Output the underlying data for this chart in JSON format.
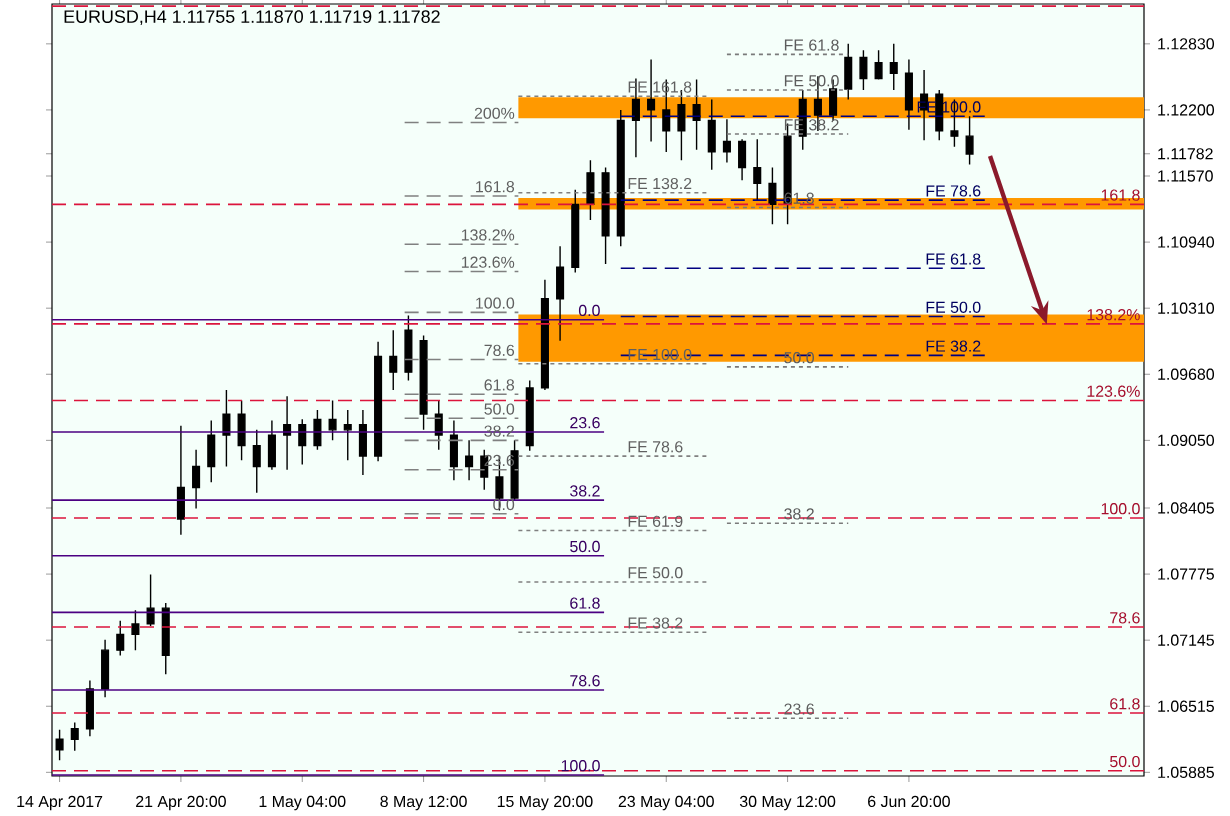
{
  "chart_data": {
    "type": "candlestick",
    "title": "EURUSD,H4 1.11755 1.11870 1.11719 1.11782",
    "color": "#000000",
    "categories": [
      "14 Apr 2017",
      null,
      null,
      null,
      null,
      null,
      null,
      null,
      "21 Apr 20:00",
      null,
      null,
      null,
      null,
      null,
      null,
      null,
      "1 May 04:00",
      null,
      null,
      null,
      null,
      null,
      null,
      null,
      "8 May 12:00",
      null,
      null,
      null,
      null,
      null,
      null,
      null,
      "15 May 20:00",
      null,
      null,
      null,
      null,
      null,
      null,
      null,
      "23 May 04:00",
      null,
      null,
      null,
      null,
      null,
      null,
      null,
      "30 May 12:00",
      null,
      null,
      null,
      null,
      null,
      null,
      null,
      "6 Jun 20:00",
      null,
      null,
      null,
      null,
      null,
      null,
      null,
      null,
      null,
      null,
      null,
      null,
      null,
      null,
      null
    ],
    "ohlc": [
      [
        1.061,
        1.0629,
        1.06,
        1.062
      ],
      [
        1.062,
        1.0636,
        1.0609,
        1.063
      ],
      [
        1.063,
        1.0676,
        1.0623,
        1.0668
      ],
      [
        1.0668,
        1.0715,
        1.066,
        1.0705
      ],
      [
        1.0705,
        1.0733,
        1.07,
        1.072
      ],
      [
        1.072,
        1.0743,
        1.0705,
        1.073
      ],
      [
        1.073,
        1.0777,
        1.0728,
        1.0745
      ],
      [
        1.0745,
        1.075,
        1.0682,
        1.07
      ],
      [
        1.083,
        1.0919,
        1.0815,
        1.086
      ],
      [
        1.086,
        1.0896,
        1.084,
        1.088
      ],
      [
        1.088,
        1.0924,
        1.0865,
        1.091
      ],
      [
        1.091,
        1.0953,
        1.088,
        1.093
      ],
      [
        1.093,
        1.0943,
        1.0886,
        1.09
      ],
      [
        1.09,
        1.0915,
        1.0855,
        1.088
      ],
      [
        1.088,
        1.0924,
        1.0877,
        1.091
      ],
      [
        1.091,
        1.0947,
        1.0877,
        1.092
      ],
      [
        1.092,
        1.0925,
        1.0882,
        1.09
      ],
      [
        1.09,
        1.0934,
        1.0896,
        1.0925
      ],
      [
        1.0925,
        1.0943,
        1.0905,
        1.0915
      ],
      [
        1.0915,
        1.0934,
        1.0886,
        1.092
      ],
      [
        1.092,
        1.0934,
        1.0872,
        1.089
      ],
      [
        1.089,
        1.0999,
        1.0885,
        1.0985
      ],
      [
        1.0985,
        1.101,
        1.0953,
        1.097
      ],
      [
        1.097,
        1.1024,
        1.0962,
        1.101
      ],
      [
        1.1,
        1.1005,
        1.0915,
        1.093
      ],
      [
        1.093,
        1.0943,
        1.0896,
        1.091
      ],
      [
        1.091,
        1.0924,
        1.0867,
        1.088
      ],
      [
        1.088,
        1.0905,
        1.0867,
        1.089
      ],
      [
        1.089,
        1.0896,
        1.0858,
        1.087
      ],
      [
        1.087,
        1.089,
        1.0838,
        1.085
      ],
      [
        1.085,
        1.0905,
        1.0848,
        1.0895
      ],
      [
        1.09,
        1.0962,
        1.0895,
        1.0955
      ],
      [
        1.0955,
        1.1058,
        1.0953,
        1.104
      ],
      [
        1.104,
        1.109,
        1.1,
        1.107
      ],
      [
        1.107,
        1.1144,
        1.1065,
        1.113
      ],
      [
        1.113,
        1.1172,
        1.1115,
        1.116
      ],
      [
        1.116,
        1.1165,
        1.1073,
        1.11
      ],
      [
        1.11,
        1.122,
        1.109,
        1.121
      ],
      [
        1.121,
        1.125,
        1.1175,
        1.123
      ],
      [
        1.123,
        1.1268,
        1.119,
        1.122
      ],
      [
        1.122,
        1.1249,
        1.118,
        1.12
      ],
      [
        1.12,
        1.1239,
        1.1172,
        1.1225
      ],
      [
        1.1225,
        1.1249,
        1.1182,
        1.121
      ],
      [
        1.121,
        1.123,
        1.1163,
        1.118
      ],
      [
        1.118,
        1.1211,
        1.117,
        1.119
      ],
      [
        1.119,
        1.1192,
        1.1153,
        1.1165
      ],
      [
        1.1165,
        1.1192,
        1.1134,
        1.115
      ],
      [
        1.115,
        1.1165,
        1.1111,
        1.113
      ],
      [
        1.113,
        1.1207,
        1.1111,
        1.1195
      ],
      [
        1.1195,
        1.1239,
        1.1182,
        1.123
      ],
      [
        1.123,
        1.1252,
        1.12,
        1.1215
      ],
      [
        1.1215,
        1.1249,
        1.121,
        1.124
      ],
      [
        1.124,
        1.1283,
        1.123,
        1.127
      ],
      [
        1.127,
        1.1277,
        1.1239,
        1.125
      ],
      [
        1.125,
        1.1277,
        1.1249,
        1.1265
      ],
      [
        1.1265,
        1.1283,
        1.1239,
        1.1255
      ],
      [
        1.1255,
        1.1268,
        1.1201,
        1.122
      ],
      [
        1.122,
        1.1258,
        1.1191,
        1.1235
      ],
      [
        1.1235,
        1.1239,
        1.1191,
        1.12
      ],
      [
        1.12,
        1.123,
        1.1185,
        1.1195
      ],
      [
        1.1195,
        1.1214,
        1.1168,
        1.1178
      ],
      null,
      null,
      null,
      null,
      null,
      null,
      null,
      null,
      null,
      null,
      null
    ],
    "ylim": [
      1.0585,
      1.1321
    ],
    "yticks": [
      {
        "value": 1.05885,
        "label": "1.05885"
      },
      {
        "value": 1.06515,
        "label": "1.06515"
      },
      {
        "value": 1.07145,
        "label": "1.07145"
      },
      {
        "value": 1.07775,
        "label": "1.07775"
      },
      {
        "value": 1.08405,
        "label": "1.08405"
      },
      {
        "value": 1.0905,
        "label": "1.09050"
      },
      {
        "value": 1.0968,
        "label": "1.09680"
      },
      {
        "value": 1.1031,
        "label": "1.10310"
      },
      {
        "value": 1.1094,
        "label": "1.10940"
      },
      {
        "value": 1.1157,
        "label": "1.11570"
      },
      1.11782,
      {
        "value": 1.122,
        "label": "1.12200"
      },
      {
        "value": 1.1283,
        "label": "1.12830"
      }
    ],
    "bands": [
      {
        "axis": "y",
        "from": 1.1212,
        "to": 1.1232,
        "color": "#ff9900"
      },
      {
        "axis": "y",
        "from": 1.1125,
        "to": 1.1136,
        "color": "#ff9900"
      },
      {
        "axis": "y",
        "from": 1.098,
        "to": 1.1025,
        "color": "#ff9900"
      }
    ],
    "ref_lines": [
      {
        "axis": "y",
        "value": 1.102,
        "color": "#4b0082",
        "line_style": "solid"
      },
      {
        "axis": "y",
        "value": 1.0913,
        "color": "#4b0082",
        "line_style": "solid"
      },
      {
        "axis": "y",
        "value": 1.0848,
        "color": "#4b0082",
        "line_style": "solid"
      },
      {
        "axis": "y",
        "value": 1.0795,
        "color": "#4b0082",
        "line_style": "solid"
      },
      {
        "axis": "y",
        "value": 1.0741,
        "color": "#4b0082",
        "line_style": "solid"
      },
      {
        "axis": "y",
        "value": 1.0667,
        "color": "#4b0082",
        "line_style": "solid"
      },
      {
        "axis": "y",
        "value": 1.0586,
        "color": "#4b0082",
        "line_style": "solid"
      },
      {
        "axis": "y",
        "value": 1.1319,
        "color": "#dc143c",
        "line_style": "dashed"
      },
      {
        "axis": "y",
        "value": 1.113,
        "color": "#dc143c",
        "line_style": "dashed"
      },
      {
        "axis": "y",
        "value": 1.1016,
        "color": "#dc143c",
        "line_style": "dashed"
      },
      {
        "axis": "y",
        "value": 1.0943,
        "color": "#dc143c",
        "line_style": "dashed"
      },
      {
        "axis": "y",
        "value": 1.0831,
        "color": "#dc143c",
        "line_style": "dashed"
      },
      {
        "axis": "y",
        "value": 1.0727,
        "color": "#dc143c",
        "line_style": "dashed"
      },
      {
        "axis": "y",
        "value": 1.0645,
        "color": "#dc143c",
        "line_style": "dashed"
      },
      {
        "axis": "y",
        "value": 1.059,
        "color": "#dc143c",
        "line_style": "dashed"
      },
      {
        "axis": "y",
        "value": 1.1208,
        "color": "#808080",
        "line_style": "dashed"
      },
      {
        "axis": "y",
        "value": 1.1138,
        "color": "#808080",
        "line_style": "dashed"
      },
      {
        "axis": "y",
        "value": 1.1092,
        "color": "#808080",
        "line_style": "dashed"
      },
      {
        "axis": "y",
        "value": 1.1066,
        "color": "#808080",
        "line_style": "dashed"
      },
      {
        "axis": "y",
        "value": 1.1027,
        "color": "#808080",
        "line_style": "dashed"
      },
      {
        "axis": "y",
        "value": 1.0982,
        "color": "#808080",
        "line_style": "dashed"
      },
      {
        "axis": "y",
        "value": 1.0949,
        "color": "#808080",
        "line_style": "dashed"
      },
      {
        "axis": "y",
        "value": 1.0926,
        "color": "#808080",
        "line_style": "dashed"
      },
      {
        "axis": "y",
        "value": 1.0905,
        "color": "#808080",
        "line_style": "dashed"
      },
      {
        "axis": "y",
        "value": 1.0877,
        "color": "#808080",
        "line_style": "dashed"
      },
      {
        "axis": "y",
        "value": 1.0835,
        "color": "#808080",
        "line_style": "dashed"
      },
      {
        "axis": "y",
        "value": 1.1233,
        "color": "#808080",
        "line_style": "dotted"
      },
      {
        "axis": "y",
        "value": 1.1141,
        "color": "#808080",
        "line_style": "dotted"
      },
      {
        "axis": "y",
        "value": 1.0978,
        "color": "#808080",
        "line_style": "dotted"
      },
      {
        "axis": "y",
        "value": 1.089,
        "color": "#808080",
        "line_style": "dotted"
      },
      {
        "axis": "y",
        "value": 1.0819,
        "color": "#808080",
        "line_style": "dotted"
      },
      {
        "axis": "y",
        "value": 1.077,
        "color": "#808080",
        "line_style": "dotted"
      },
      {
        "axis": "y",
        "value": 1.0722,
        "color": "#808080",
        "line_style": "dotted"
      },
      {
        "axis": "y",
        "value": 1.1273,
        "color": "#7a7a7a",
        "line_style": "dotted"
      },
      {
        "axis": "y",
        "value": 1.1239,
        "color": "#7a7a7a",
        "line_style": "dotted"
      },
      {
        "axis": "y",
        "value": 1.1197,
        "color": "#7a7a7a",
        "line_style": "dotted"
      },
      {
        "axis": "y",
        "value": 1.1127,
        "color": "#7a7a7a",
        "line_style": "dotted"
      },
      {
        "axis": "y",
        "value": 1.0975,
        "color": "#7a7a7a",
        "line_style": "dotted"
      },
      {
        "axis": "y",
        "value": 1.0826,
        "color": "#7a7a7a",
        "line_style": "dotted"
      },
      {
        "axis": "y",
        "value": 1.064,
        "color": "#7a7a7a",
        "line_style": "dotted"
      },
      {
        "axis": "y",
        "value": 1.1214,
        "color": "#000080",
        "line_style": "dashed"
      },
      {
        "axis": "y",
        "value": 1.1134,
        "color": "#000080",
        "line_style": "dashed"
      },
      {
        "axis": "y",
        "value": 1.1069,
        "color": "#000080",
        "line_style": "dashed"
      },
      {
        "axis": "y",
        "value": 1.1023,
        "color": "#000080",
        "line_style": "dashed"
      },
      {
        "axis": "y",
        "value": 1.0986,
        "color": "#000080",
        "line_style": "dashed"
      }
    ],
    "annotations": [
      {
        "text": "0.0",
        "y": 1.102
      },
      {
        "text": "23.6",
        "y": 1.0913
      },
      {
        "text": "38.2",
        "y": 1.0848
      },
      {
        "text": "50.0",
        "y": 1.0795
      },
      {
        "text": "61.8",
        "y": 1.0741
      },
      {
        "text": "78.6",
        "y": 1.0667
      },
      {
        "text": "100.0",
        "y": 1.0586
      },
      {
        "text": "161.8",
        "y": 1.113
      },
      {
        "text": "138.2%",
        "y": 1.1016
      },
      {
        "text": "123.6%",
        "y": 1.0943
      },
      {
        "text": "100.0",
        "y": 1.0831
      },
      {
        "text": "78.6",
        "y": 1.0727
      },
      {
        "text": "61.8",
        "y": 1.0645
      },
      {
        "text": "50.0",
        "y": 1.059
      },
      {
        "text": "200%",
        "y": 1.1208
      },
      {
        "text": "161.8",
        "y": 1.1138
      },
      {
        "text": "138.2%",
        "y": 1.1092
      },
      {
        "text": "123.6%",
        "y": 1.1066
      },
      {
        "text": "100.0",
        "y": 1.1027
      },
      {
        "text": "78.6",
        "y": 1.0982
      },
      {
        "text": "61.8",
        "y": 1.0949
      },
      {
        "text": "50.0",
        "y": 1.0926
      },
      {
        "text": "38.2",
        "y": 1.0905
      },
      {
        "text": "23.6",
        "y": 1.0877
      },
      {
        "text": "0.0",
        "y": 1.0835
      },
      {
        "text": "FE 161.8",
        "y": 1.1233
      },
      {
        "text": "FE 138.2",
        "y": 1.1141
      },
      {
        "text": "FE 100.0",
        "y": 1.0978
      },
      {
        "text": "FE 78.6",
        "y": 1.089
      },
      {
        "text": "FE 61.9",
        "y": 1.0819
      },
      {
        "text": "FE 50.0",
        "y": 1.077
      },
      {
        "text": "FE 38.2",
        "y": 1.0722
      },
      {
        "text": "FE 61.8",
        "y": 1.1273
      },
      {
        "text": "FE 50.0",
        "y": 1.1239
      },
      {
        "text": "FE 38.2",
        "y": 1.1197
      },
      {
        "text": "61.8",
        "y": 1.1127
      },
      {
        "text": "50.0",
        "y": 1.0975
      },
      {
        "text": "38.2",
        "y": 1.0826
      },
      {
        "text": "23.6",
        "y": 1.064
      },
      {
        "text": "FE 100.0",
        "y": 1.1214
      },
      {
        "text": "FE 78.6",
        "y": 1.1134
      },
      {
        "text": "FE 61.8",
        "y": 1.1069
      },
      {
        "text": "FE 50.0",
        "y": 1.1023
      },
      {
        "text": "FE 38.2",
        "y": 1.0986
      }
    ]
  }
}
